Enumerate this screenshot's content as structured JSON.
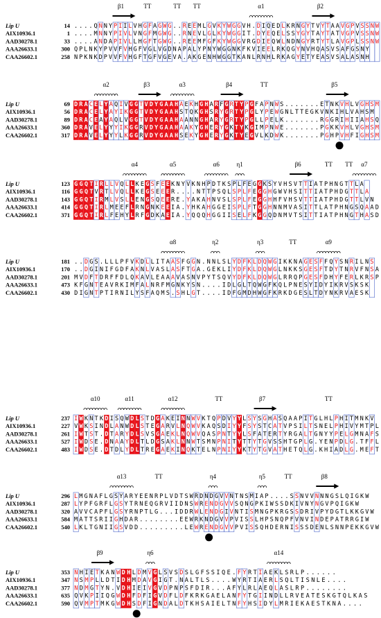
{
  "blocks": [
    {
      "ss": [
        "β1",
        "TT",
        "TT",
        "TT",
        "α1",
        "β2"
      ],
      "rows": [
        {
          "name": "Lip U",
          "start": 14,
          "seq": "....QNNYPIILVHGFAGWG..REEMLGVKYWGGVH.DIQEDLKRNGYTVYTAAVGPVSSNW"
        },
        {
          "name": "AIX10936.1",
          "start": 1,
          "seq": "....MNNYPIVLVNGFMGWG..RNEVLGLKYWGGIT.DYEQELSSYGYTAYTATVGPVSSNW"
        },
        {
          "name": "AAD30278.1",
          "start": 33,
          "seq": "....ANDAPIVLLHGFTGWG..REEMFGFKYWGGVRGDIEQWLNDNGYRTYTLAVGPLSSNW"
        },
        {
          "name": "AAA26633.1",
          "start": 300,
          "seq": "QPLNKYPVVFVHGFVGLVGDNAPALYPNYWGGNKFKVIEELRKQGYNVHQASVSAFGSNY"
        },
        {
          "name": "CAA26602.1",
          "start": 258,
          "seq": "NPKNKDPVVFVHGFTGFVGEVA.AKGENHWGGTKANLRNHLRKAGYETYEASVSALASNH"
        }
      ]
    },
    {
      "ss": [
        "α2",
        "β3",
        "α3",
        "β4",
        "TT",
        "β5"
      ],
      "rows": [
        {
          "name": "Lip U",
          "start": 69,
          "seq": "DRACELYAQIVGGTVDYGAAHAEKHGHARFGRTYPGFAPNWS.......ETNKVHLVGHSM"
        },
        {
          "name": "AIX10936.1",
          "start": 56,
          "seq": "DRACELYAYIKGGTVDYGAAHSTQKGHSRYGRTYPGLYPEWGNLTTEGKVNKIHLVAHSM"
        },
        {
          "name": "AAD30278.1",
          "start": 89,
          "seq": "DRACEAYAQLVGGTVDYGAAHAANNGHARYGRTYPGLLPELK.......RGGRIHIIAHSQ"
        },
        {
          "name": "AAA26633.1",
          "start": 360,
          "seq": "DRAVELYYYIKGGRVDYGAAHAAKYGHERYGKTYKGIMPNWE.......PGKKVHLVGHSM"
        },
        {
          "name": "CAA26602.1",
          "start": 317,
          "seq": "DRAVELYYYLKGGRVDYGAAHSEKYGHERYGKTYEGVLKDWK.......PGHPVHFIGHSM"
        }
      ]
    },
    {
      "ss": [
        "α4",
        "α5",
        "α6",
        "η1",
        "β6",
        "TT",
        "TT",
        "α7"
      ],
      "rows": [
        {
          "name": "Lip U",
          "start": 123,
          "seq": "GGQTIRLLVQLLKEGSFEEKNYVKNHPDTKSPLFEGGKSYVHSVTTIATPHNGTTLA"
        },
        {
          "name": "AIX10936.1",
          "start": 116,
          "seq": "GGQTVRTLVQLLKEGSEEER....NTTPSQLSPLFEGGHGWVHSITTIATPHDGTTLA"
        },
        {
          "name": "AAD30278.1",
          "start": 143,
          "seq": "GGQTIRMLVSLLENGSQEERE.YAKAHNVSLSPLFEGGHHFVHSVTTIATPHDGTTLVN"
        },
        {
          "name": "AAA26633.1",
          "start": 414,
          "seq": "GGQTIRLMEEFLRNGNKEEIA.YHKAHGGEISPLFTGGHNNMVASITTLATPHNGSQAAD"
        },
        {
          "name": "CAA26602.1",
          "start": 371,
          "seq": "GGQTIRLFEHYLRFGDKAEIA.YQQQHGGIISELFKGGQDNMVTSITTIATPHNGTHASD"
        }
      ]
    },
    {
      "ss": [
        "α8",
        "η2",
        "η3",
        "TT",
        "α9"
      ],
      "rows": [
        {
          "name": "Lip U",
          "start": 181,
          "seq": "..DGS.LLLPFVKDLLITAASFGGN.NNLSLYDFKLDQWGIKKNAGESFFQYSNRILNS"
        },
        {
          "name": "AIX10936.1",
          "start": 170,
          "seq": "..DGINIFGDFAKNLVASLASFTGA.GEKLIYDFKLDQWGLNKKSGESFTDYTNRVFNSA"
        },
        {
          "name": "AAD30278.1",
          "start": 201,
          "seq": "MVDFTDRFFDLQKAVLEAAAVASNVPYTSQVYDFKLDQWGLRRQPGESFDHYFERLKRSP"
        },
        {
          "name": "AAA26633.1",
          "start": 473,
          "seq": "KFGNTEAVRKIMFALNRFMGNKYSN....IDLGLTQWGFKQLPNESYIDYIKRVSKSK"
        },
        {
          "name": "CAA26602.1",
          "start": 430,
          "seq": "DIGNTPTIRNILYSFAQMS.SHLGT....IDFGMDHWGFKRKDGESLTDYNKRVAESK"
        }
      ]
    },
    {
      "ss": [
        "α10",
        "α11",
        "α12",
        "TT",
        "β7",
        "TT"
      ],
      "rows": [
        {
          "name": "Lip U",
          "start": 237,
          "seq": "IWKNTKDISQWDLSTDGAKEINNWVKTQPDVYYLSYSGHASQAAPITGLHLPHITMNKV"
        },
        {
          "name": "AIX10936.1",
          "start": 227,
          "seq": "VWKSINDLANWDLSTEGARVLNQWVKAQSDIYYFSYSTCATVPSILTSNELPHIVYMTPL"
        },
        {
          "name": "AAD30278.1",
          "start": 261,
          "seq": "IWTST.DTARYDLSVSGAEKLNQWVQASPNTYYLSFATERTYRGALTGNYYPELGMNAFS"
        },
        {
          "name": "AAA26633.1",
          "start": 527,
          "seq": "IWDSE.DNAAYDLTLDGSAKLNNWTSMNPNITYTTYTGVSSHTGPLG.YENPDLG.TFFL"
        },
        {
          "name": "CAA26602.1",
          "start": 483,
          "seq": "IWDSE.DTDLYDLTREGAEKINQKTELNPNIYYKTYTGVATHETQLG.KHIADLG.MEFT"
        }
      ]
    },
    {
      "ss": [
        "α13",
        "TT",
        "η4",
        "η5",
        "TT",
        "β8"
      ],
      "rows": [
        {
          "name": "Lip U",
          "start": 296,
          "seq": "LMGNAFLGSYARYEENRPLVDTSWRDNDGVVNTNSMIAP....SSNVVNNNGSLQIGKW"
        },
        {
          "name": "AIX10936.1",
          "start": 287,
          "seq": "LYPFGRFLGSYTRNEQGRVIIDNSWRENDGVVSQNGPKIWSSDKIVNYNGVPQIGKW"
        },
        {
          "name": "AAD30278.1",
          "start": 320,
          "seq": "AVVCAPFLGSYRNPTLG...IDDRWLENDGIVNTISMNGPKRGSSDRIVPYDGTLKKGVW"
        },
        {
          "name": "AAA26633.1",
          "start": 584,
          "seq": "MATTSRIIGHDAR........EEWRKNDGVVPVISSLHPSNQPFVNVINDEPATRRGIW"
        },
        {
          "name": "CAA26602.1",
          "start": 540,
          "seq": "LKLTGNIIGSVDD.........LEWRENDGVVPVISSQHDERNISSSDENLSNNPEKKGVW"
        }
      ]
    },
    {
      "ss": [
        "β9",
        "η6",
        "α14"
      ],
      "rows": [
        {
          "name": "Lip U",
          "start": 353,
          "seq": "NHIETKANWDHLDMVGLSVSDSLGFSSIQE.FYRTIAEKLSRLP......"
        },
        {
          "name": "AIX10936.1",
          "start": 347,
          "seq": "NSMPLLDTIDHMDAVGIGT.NALTLS....WYRTIAERLSQLTISNLE...."
        },
        {
          "name": "AAD30278.1",
          "start": 377,
          "seq": "NDMGTYN.VDHIEIVGVDPNPSFDIR...AFYLRLAEQLASLRP........"
        },
        {
          "name": "AAA26633.1",
          "start": 635,
          "seq": "QVKPIIQGWDHFDFIGVDFLDFKRKGAELANFYTGIINDLLRVEATESKGTQLKAS"
        },
        {
          "name": "CAA26602.1",
          "start": 590,
          "seq": "QVMPTMKGWDHSDFIGNDALDTKHSAIELTNFYHSIDYLMRIEKAESTKNA...."
        }
      ]
    }
  ]
}
